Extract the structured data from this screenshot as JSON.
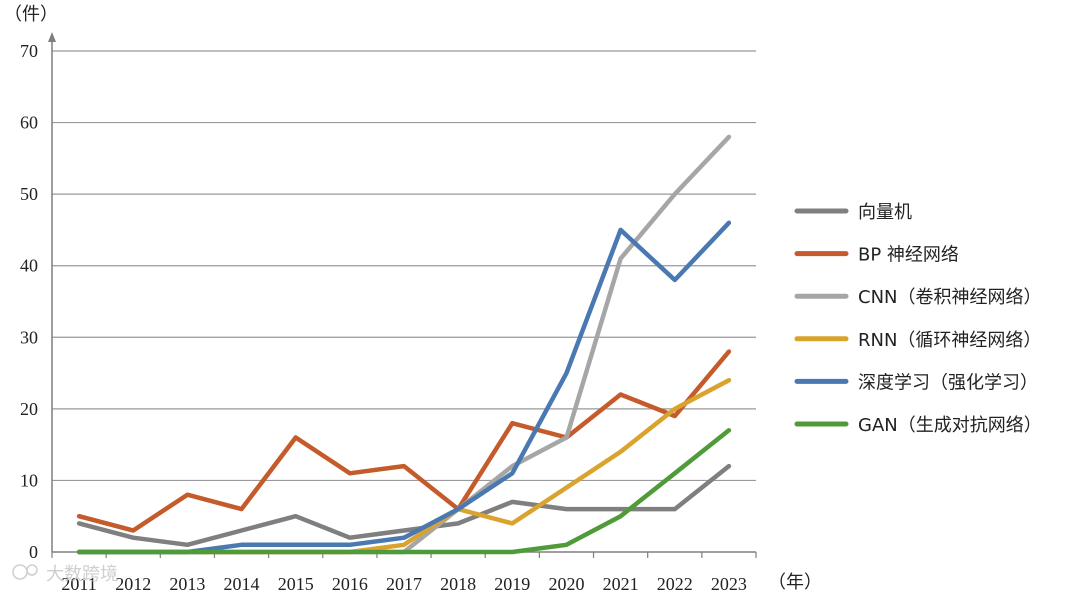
{
  "chart_data": {
    "type": "line",
    "ylabel": "（件）",
    "xlabel": "（年）",
    "categories": [
      "2011",
      "2012",
      "2013",
      "2014",
      "2015",
      "2016",
      "2017",
      "2018",
      "2019",
      "2020",
      "2021",
      "2022",
      "2023"
    ],
    "ylim": [
      0,
      70
    ],
    "yticks": [
      0,
      10,
      20,
      30,
      40,
      50,
      60,
      70
    ],
    "grid": true,
    "legend_position": "right",
    "series": [
      {
        "name": "向量机",
        "color": "#7f7f7f",
        "values": [
          4,
          2,
          1,
          3,
          5,
          2,
          3,
          4,
          7,
          6,
          6,
          6,
          12
        ]
      },
      {
        "name": "BP 神经网络",
        "color": "#c55a2b",
        "values": [
          5,
          3,
          8,
          6,
          16,
          11,
          12,
          6,
          18,
          16,
          22,
          19,
          28
        ]
      },
      {
        "name": "CNN（卷积神经网络）",
        "color": "#a6a6a6",
        "values": [
          0,
          0,
          0,
          0,
          0,
          0,
          0,
          6,
          12,
          16,
          41,
          50,
          58
        ]
      },
      {
        "name": "RNN（循环神经网络）",
        "color": "#d9a32e",
        "values": [
          0,
          0,
          0,
          0,
          0,
          0,
          1,
          6,
          4,
          9,
          14,
          20,
          24
        ]
      },
      {
        "name": "深度学习（强化学习）",
        "color": "#4a78b0",
        "values": [
          0,
          0,
          0,
          1,
          1,
          1,
          2,
          6,
          11,
          25,
          45,
          38,
          46
        ]
      },
      {
        "name": "GAN（生成对抗网络）",
        "color": "#4f9b3a",
        "values": [
          0,
          0,
          0,
          0,
          0,
          0,
          0,
          0,
          0,
          1,
          5,
          11,
          17
        ]
      }
    ]
  },
  "watermark": "大数跨境"
}
